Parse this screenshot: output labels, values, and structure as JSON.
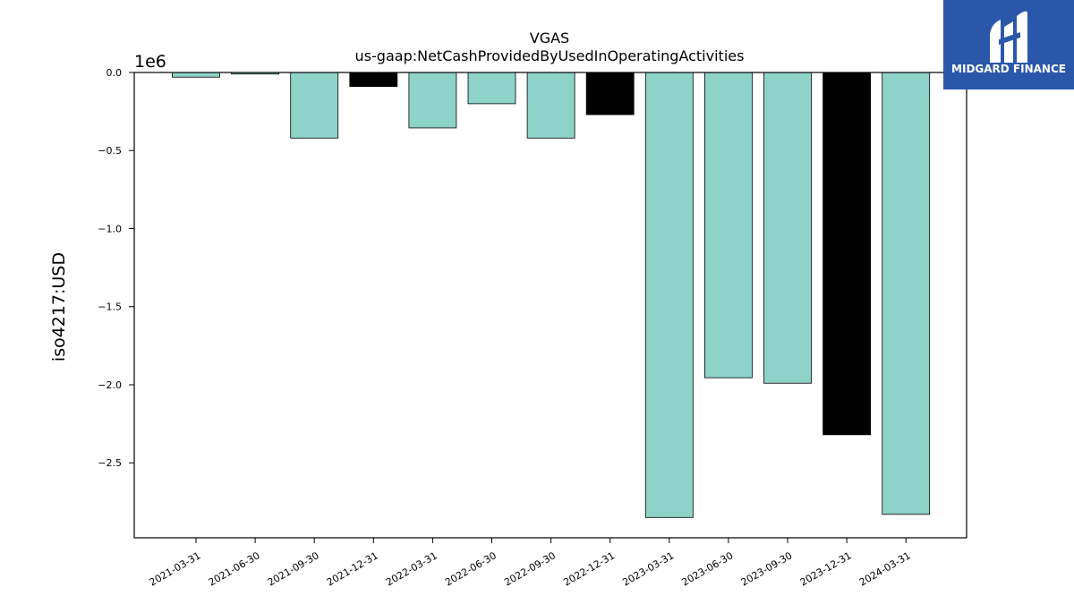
{
  "brand": {
    "name": "MIDGARD FINANCE",
    "color": "#2b57ab"
  },
  "chart_data": {
    "type": "bar",
    "title": "VGAS",
    "subtitle": "us-gaap:NetCashProvidedByUsedInOperatingActivities",
    "xlabel": "",
    "ylabel": "iso4217:USD",
    "y_offset_label": "1e6",
    "ylim": [
      -2.98,
      0.0
    ],
    "yticks": [
      0.0,
      -0.5,
      -1.0,
      -1.5,
      -2.0,
      -2.5
    ],
    "ytick_labels": [
      "0.0",
      "−0.5",
      "−1.0",
      "−1.5",
      "−2.0",
      "−2.5"
    ],
    "grid": false,
    "categories": [
      "2021-03-31",
      "2021-06-30",
      "2021-09-30",
      "2021-12-31",
      "2022-03-31",
      "2022-06-30",
      "2022-09-30",
      "2022-12-31",
      "2023-03-31",
      "2023-06-30",
      "2023-09-30",
      "2023-12-31",
      "2024-03-31"
    ],
    "values": [
      -0.03,
      -0.01,
      -0.42,
      -0.09,
      -0.355,
      -0.2,
      -0.42,
      -0.27,
      -2.85,
      -1.955,
      -1.99,
      -2.32,
      -2.83
    ],
    "colors": [
      "#8dd3c7",
      "#8dd3c7",
      "#8dd3c7",
      "#000000",
      "#8dd3c7",
      "#8dd3c7",
      "#8dd3c7",
      "#000000",
      "#8dd3c7",
      "#8dd3c7",
      "#8dd3c7",
      "#000000",
      "#8dd3c7"
    ]
  }
}
